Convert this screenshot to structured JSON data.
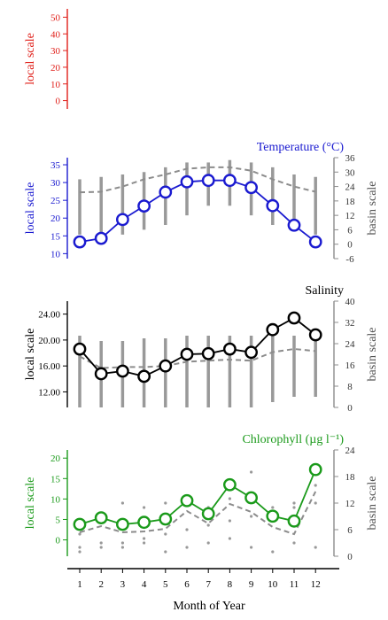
{
  "chart_data": [
    {
      "type": "line",
      "title": "",
      "color": "#e0201a",
      "ylabel_left": "local scale",
      "yticks_left": [
        0,
        10,
        20,
        30,
        40,
        50
      ],
      "ylim_left": [
        -5,
        55
      ],
      "series": []
    },
    {
      "type": "line",
      "title": "Temperature (°C)",
      "color": "#1a1ad0",
      "ylabel_left": "local scale",
      "ylabel_right": "basin scale",
      "yticks_left": [
        10,
        15,
        20,
        25,
        30,
        35
      ],
      "yticks_right": [
        -6,
        0,
        6,
        12,
        18,
        24,
        30,
        36
      ],
      "ylim_left": [
        8.6,
        37
      ],
      "ylim_right": [
        -6,
        36
      ],
      "local_values": [
        13.3,
        14.3,
        19.6,
        23.4,
        27.3,
        30.2,
        30.6,
        30.6,
        28.6,
        23.5,
        18,
        13.3
      ],
      "basin_mean": [
        21.6,
        21.8,
        24,
        27,
        29,
        31.4,
        32,
        32,
        30.6,
        27,
        24,
        21.8
      ],
      "basin_range": [
        [
          4,
          27
        ],
        [
          2,
          28
        ],
        [
          4,
          29
        ],
        [
          6,
          30
        ],
        [
          8,
          32
        ],
        [
          12,
          34
        ],
        [
          16,
          34
        ],
        [
          16,
          35
        ],
        [
          12,
          34
        ],
        [
          8,
          32
        ],
        [
          6,
          29
        ],
        [
          4,
          28
        ]
      ]
    },
    {
      "type": "line",
      "title": "Salinity",
      "color": "#000000",
      "ylabel_left": "local scale",
      "ylabel_right": "basin scale",
      "yticks_left": [
        "12.00",
        "16.00",
        "20.00",
        "24.00"
      ],
      "yticks_right": [
        0,
        8,
        16,
        24,
        32,
        40
      ],
      "ylim_left": [
        9.6,
        26
      ],
      "ylim_right": [
        0,
        40
      ],
      "local_values": [
        18.6,
        14.8,
        15.2,
        14.4,
        16,
        17.8,
        17.9,
        18.6,
        18.1,
        21.6,
        23.4,
        20.8
      ],
      "basin_mean": [
        19.2,
        14.8,
        15.2,
        15.2,
        15.6,
        17.2,
        17.6,
        18,
        17.6,
        20.8,
        22,
        21.2
      ],
      "basin_range": [
        [
          0,
          27
        ],
        [
          0,
          25
        ],
        [
          0,
          25
        ],
        [
          0,
          26
        ],
        [
          0,
          26
        ],
        [
          0,
          27
        ],
        [
          0,
          27
        ],
        [
          0,
          27
        ],
        [
          0,
          27
        ],
        [
          2,
          27
        ],
        [
          4,
          27
        ],
        [
          4,
          27
        ]
      ]
    },
    {
      "type": "line",
      "title": "Chlorophyll (µg l⁻¹)",
      "color": "#1a9a1a",
      "ylabel_left": "local scale",
      "ylabel_right": "basin scale",
      "yticks_left": [
        0,
        5,
        10,
        15,
        20
      ],
      "yticks_right": [
        0,
        6,
        12,
        18,
        24
      ],
      "ylim_left": [
        -4,
        22
      ],
      "ylim_right": [
        0,
        24
      ],
      "local_values": [
        3.8,
        5.4,
        3.8,
        4.3,
        5.1,
        9.6,
        6.4,
        13.5,
        10.3,
        5.8,
        4.6,
        17.2
      ],
      "basin_mean": [
        5.4,
        6.8,
        5.4,
        5.6,
        6.2,
        10.2,
        7.4,
        11.8,
        10,
        6.6,
        5,
        14.6
      ],
      "outliers": [
        [
          1,
          2,
          5
        ],
        [
          2,
          3,
          8
        ],
        [
          3,
          2,
          12
        ],
        [
          4,
          3,
          11
        ],
        [
          5,
          1,
          12
        ],
        [
          6,
          2,
          12
        ],
        [
          7,
          3,
          11
        ],
        [
          8,
          4,
          13
        ],
        [
          9,
          2,
          19
        ],
        [
          10,
          1,
          11
        ],
        [
          11,
          3,
          12
        ],
        [
          12,
          2,
          16
        ]
      ]
    }
  ],
  "x_axis": {
    "label": "Month of Year",
    "ticks": [
      "1",
      "2",
      "3",
      "4",
      "5",
      "6",
      "7",
      "8",
      "9",
      "10",
      "11",
      "12"
    ]
  },
  "colors": {
    "basin": "#8c8c8c",
    "axis": "#000000"
  }
}
